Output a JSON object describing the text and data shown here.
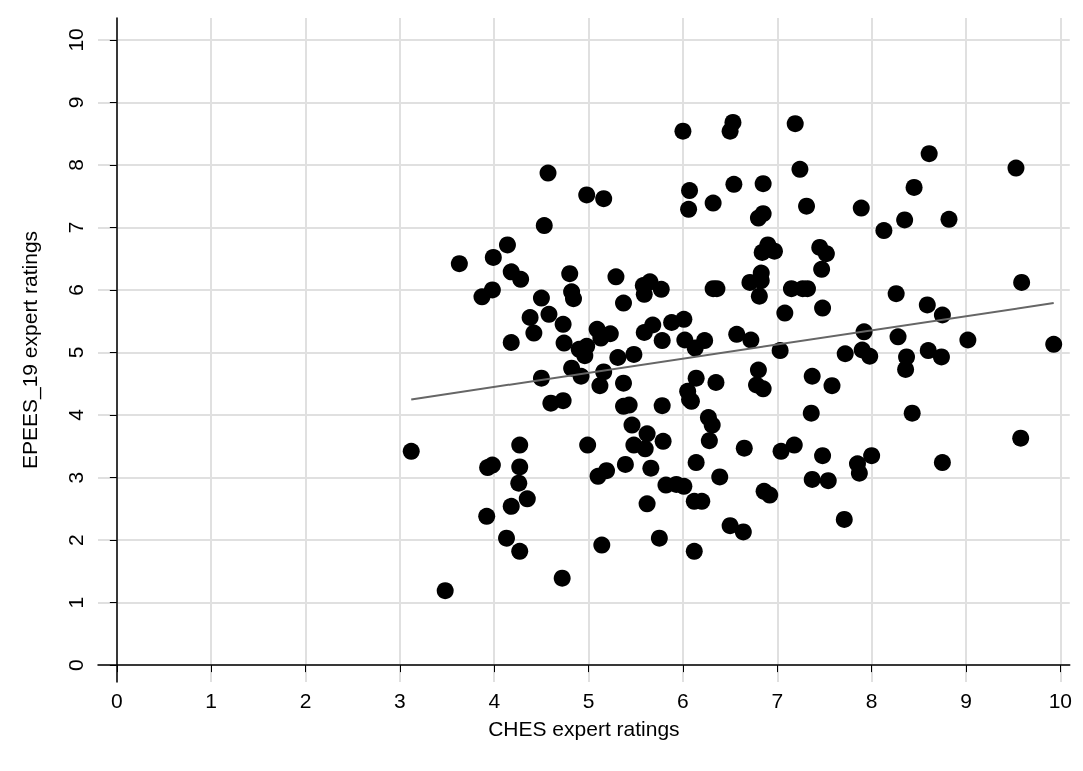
{
  "chart_data": {
    "type": "scatter",
    "xlabel": "CHES expert ratings",
    "ylabel": "EPEES_19 expert ratings",
    "xlim": [
      -0.2,
      10.1
    ],
    "ylim": [
      -0.27,
      10.35
    ],
    "xticks": [
      0,
      1,
      2,
      3,
      4,
      5,
      6,
      7,
      8,
      9,
      10
    ],
    "yticks": [
      0,
      1,
      2,
      3,
      4,
      5,
      6,
      7,
      8,
      9,
      10
    ],
    "grid": true,
    "marker": "circle",
    "series": [
      {
        "color": "#000000",
        "x": [
          3.12,
          3.48,
          3.63,
          3.87,
          3.92,
          3.93,
          3.98,
          3.98,
          3.99,
          4.13,
          4.14,
          4.18,
          4.18,
          4.18,
          4.26,
          4.27,
          4.27,
          4.27,
          4.28,
          4.35,
          4.38,
          4.42,
          4.5,
          4.5,
          4.53,
          4.57,
          4.58,
          4.6,
          4.73,
          4.73,
          4.74,
          4.72,
          4.8,
          4.82,
          4.84,
          4.82,
          4.9,
          4.92,
          4.96,
          4.98,
          4.98,
          4.99,
          5.09,
          5.1,
          5.12,
          5.13,
          5.14,
          5.16,
          5.16,
          5.19,
          5.23,
          5.29,
          5.31,
          5.37,
          5.37,
          5.39,
          5.37,
          5.43,
          5.46,
          5.48,
          5.48,
          5.58,
          5.59,
          5.59,
          5.6,
          5.62,
          5.62,
          5.65,
          5.66,
          5.68,
          5.75,
          5.77,
          5.78,
          5.78,
          5.79,
          5.82,
          5.88,
          5.93,
          6.0,
          6.01,
          6.01,
          6.02,
          6.05,
          6.06,
          6.07,
          6.07,
          6.09,
          6.12,
          6.12,
          6.13,
          6.14,
          6.14,
          6.2,
          6.23,
          6.27,
          6.28,
          6.31,
          6.32,
          6.32,
          6.35,
          6.36,
          6.39,
          6.5,
          6.5,
          6.53,
          6.54,
          6.57,
          6.64,
          6.65,
          6.71,
          6.72,
          6.78,
          6.8,
          6.8,
          6.81,
          6.83,
          6.83,
          6.84,
          6.85,
          6.85,
          6.85,
          6.86,
          6.9,
          6.92,
          6.97,
          7.03,
          7.04,
          7.08,
          7.15,
          7.19,
          7.18,
          7.24,
          7.27,
          7.32,
          7.31,
          7.36,
          7.37,
          7.37,
          7.45,
          7.47,
          7.48,
          7.48,
          7.52,
          7.54,
          7.58,
          7.72,
          7.71,
          7.85,
          7.87,
          7.89,
          7.9,
          7.92,
          7.98,
          8.0,
          8.13,
          8.26,
          8.28,
          8.35,
          8.36,
          8.37,
          8.43,
          8.45,
          8.59,
          8.6,
          8.61,
          8.74,
          8.75,
          8.75,
          8.82,
          9.02,
          9.53,
          9.58,
          9.59,
          9.93
        ],
        "values": [
          3.42,
          1.19,
          6.42,
          5.89,
          2.38,
          3.16,
          3.2,
          6.0,
          6.52,
          2.03,
          6.72,
          2.54,
          6.29,
          5.16,
          2.91,
          3.52,
          3.17,
          1.82,
          6.17,
          2.66,
          5.56,
          5.31,
          4.59,
          5.87,
          7.03,
          7.87,
          5.61,
          4.19,
          4.23,
          5.45,
          5.15,
          1.39,
          6.26,
          5.97,
          5.86,
          4.75,
          5.05,
          4.62,
          4.95,
          7.52,
          5.1,
          3.52,
          5.37,
          3.02,
          4.47,
          5.23,
          1.92,
          7.46,
          4.69,
          3.11,
          5.3,
          6.21,
          4.92,
          5.79,
          4.51,
          3.21,
          4.14,
          4.16,
          3.84,
          3.52,
          4.97,
          6.07,
          5.93,
          5.32,
          3.46,
          2.58,
          3.7,
          6.13,
          3.15,
          5.44,
          2.03,
          6.01,
          5.19,
          4.15,
          3.58,
          2.88,
          5.48,
          2.89,
          8.54,
          2.86,
          5.53,
          5.2,
          4.38,
          7.29,
          7.59,
          4.25,
          4.22,
          1.82,
          2.62,
          5.07,
          3.24,
          4.59,
          2.62,
          5.19,
          3.96,
          3.59,
          3.84,
          6.02,
          7.39,
          4.52,
          6.02,
          3.01,
          8.54,
          2.23,
          8.68,
          7.69,
          5.29,
          2.13,
          3.47,
          6.12,
          5.2,
          4.48,
          7.15,
          4.72,
          5.9,
          6.15,
          6.27,
          6.6,
          7.7,
          7.22,
          4.42,
          2.78,
          6.72,
          2.72,
          6.62,
          5.03,
          3.42,
          5.63,
          6.02,
          8.66,
          3.52,
          7.93,
          6.02,
          6.02,
          7.34,
          4.03,
          4.62,
          2.97,
          6.68,
          6.33,
          5.71,
          3.35,
          6.58,
          2.95,
          4.47,
          4.98,
          2.33,
          3.22,
          3.07,
          7.31,
          5.04,
          5.33,
          4.94,
          3.35,
          6.95,
          5.94,
          5.25,
          7.12,
          4.73,
          4.93,
          4.03,
          7.64,
          5.76,
          5.03,
          8.18,
          4.93,
          5.6,
          3.24,
          7.13,
          5.2,
          7.95,
          3.63,
          6.12,
          5.13
        ]
      },
      {
        "type": "line",
        "color": "#666666",
        "marker": "none",
        "x": [
          3.12,
          9.93
        ],
        "values": [
          4.25,
          5.79
        ]
      }
    ]
  }
}
